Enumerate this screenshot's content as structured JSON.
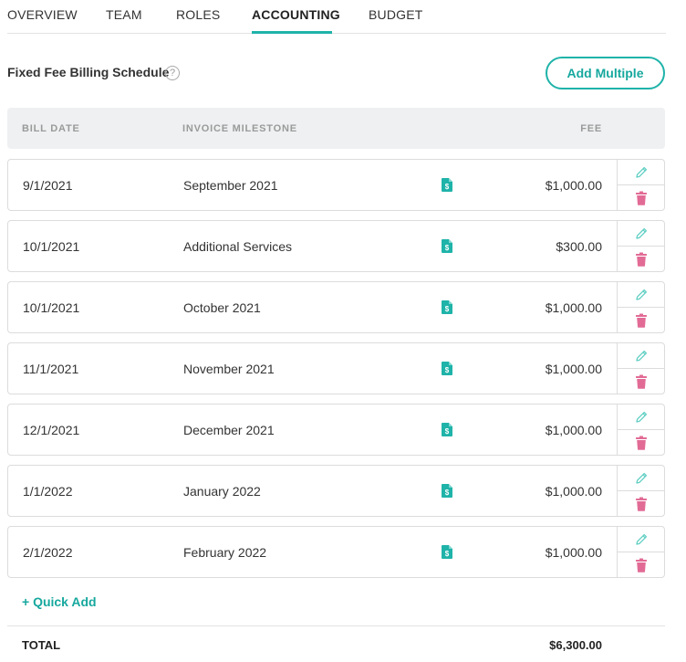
{
  "tabs": {
    "overview": "OVERVIEW",
    "team": "TEAM",
    "roles": "ROLES",
    "accounting": "ACCOUNTING",
    "budget": "BUDGET",
    "active": "ACCOUNTING"
  },
  "section": {
    "title": "Fixed Fee Billing Schedule",
    "help_symbol": "?",
    "add_multiple_label": "Add Multiple"
  },
  "table": {
    "columns": {
      "bill_date": "BILL DATE",
      "invoice_milestone": "INVOICE MILESTONE",
      "fee": "FEE"
    },
    "rows": [
      {
        "date": "9/1/2021",
        "milestone": "September 2021",
        "fee": "$1,000.00"
      },
      {
        "date": "10/1/2021",
        "milestone": "Additional Services",
        "fee": "$300.00"
      },
      {
        "date": "10/1/2021",
        "milestone": "October 2021",
        "fee": "$1,000.00"
      },
      {
        "date": "11/1/2021",
        "milestone": "November 2021",
        "fee": "$1,000.00"
      },
      {
        "date": "12/1/2021",
        "milestone": "December 2021",
        "fee": "$1,000.00"
      },
      {
        "date": "1/1/2022",
        "milestone": "January 2022",
        "fee": "$1,000.00"
      },
      {
        "date": "2/1/2022",
        "milestone": "February 2022",
        "fee": "$1,000.00"
      }
    ],
    "row_icons": {
      "doc": "invoice-dollar-icon",
      "edit": "pencil-icon",
      "delete": "trash-icon"
    }
  },
  "quick_add": {
    "label": "+ Quick Add"
  },
  "total": {
    "label": "TOTAL",
    "value": "$6,300.00"
  },
  "colors": {
    "accent": "#1fb3a9",
    "delete": "#e26b95",
    "edit": "#5fcfc3",
    "header_bg": "#eef0f1",
    "border": "#dcdcdc"
  }
}
